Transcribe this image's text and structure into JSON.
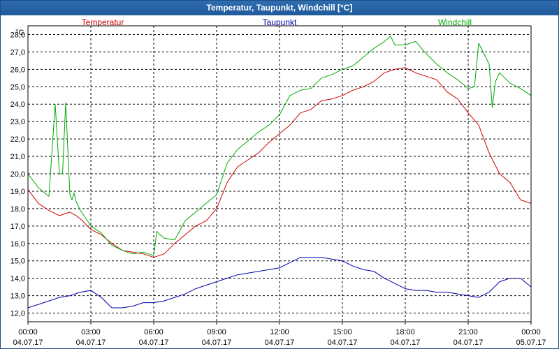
{
  "chart_data": {
    "type": "line",
    "title": "Temperatur, Taupunkt, Windchill [°C]",
    "ylabel": "°C",
    "ylim": [
      11.5,
      28.5
    ],
    "yticks": [
      12,
      13,
      14,
      15,
      16,
      17,
      18,
      19,
      20,
      21,
      22,
      23,
      24,
      25,
      26,
      27,
      28
    ],
    "ytick_labels": [
      "12,0",
      "13,0",
      "14,0",
      "15,0",
      "16,0",
      "17,0",
      "18,0",
      "19,0",
      "20,0",
      "21,0",
      "22,0",
      "23,0",
      "24,0",
      "25,0",
      "26,0",
      "27,0",
      "28,0"
    ],
    "xlim": [
      0,
      24
    ],
    "xticks": [
      {
        "x": 0,
        "time": "00:00",
        "date": "04.07.17"
      },
      {
        "x": 3,
        "time": "03:00",
        "date": "04.07.17"
      },
      {
        "x": 6,
        "time": "06:00",
        "date": "04.07.17"
      },
      {
        "x": 9,
        "time": "09:00",
        "date": "04.07.17"
      },
      {
        "x": 12,
        "time": "12:00",
        "date": "04.07.17"
      },
      {
        "x": 15,
        "time": "15:00",
        "date": "04.07.17"
      },
      {
        "x": 18,
        "time": "18:00",
        "date": "04.07.17"
      },
      {
        "x": 21,
        "time": "21:00",
        "date": "04.07.17"
      },
      {
        "x": 24,
        "time": "00:00",
        "date": "05.07.17"
      }
    ],
    "grid": true,
    "series": [
      {
        "name": "Temperatur",
        "color": "#cc0000",
        "x": [
          0,
          0.5,
          1,
          1.5,
          2,
          2.3,
          2.6,
          3,
          3.5,
          4,
          4.5,
          5,
          5.5,
          6,
          6.5,
          7,
          7.5,
          8,
          8.5,
          9,
          9.5,
          10,
          10.5,
          11,
          11.5,
          12,
          12.5,
          13,
          13.5,
          14,
          14.5,
          15,
          15.5,
          16,
          16.5,
          17,
          17.5,
          18,
          18.5,
          19,
          19.5,
          20,
          20.5,
          21,
          21.5,
          22,
          22.5,
          23,
          23.5,
          24
        ],
        "values": [
          19.1,
          18.3,
          17.9,
          17.6,
          17.8,
          17.6,
          17.3,
          16.8,
          16.5,
          16.0,
          15.6,
          15.5,
          15.4,
          15.2,
          15.4,
          16.0,
          16.5,
          17.0,
          17.3,
          18.0,
          19.5,
          20.4,
          20.8,
          21.2,
          21.8,
          22.3,
          22.8,
          23.5,
          23.7,
          24.2,
          24.3,
          24.5,
          24.8,
          25.0,
          25.3,
          25.8,
          26.0,
          26.1,
          25.8,
          25.6,
          25.4,
          24.7,
          24.3,
          23.5,
          22.8,
          21.2,
          20.0,
          19.5,
          18.5,
          18.3
        ]
      },
      {
        "name": "Taupunkt",
        "color": "#0000aa",
        "x": [
          0,
          0.5,
          1,
          1.5,
          2,
          2.5,
          3,
          3.5,
          4,
          4.5,
          5,
          5.5,
          6,
          6.5,
          7,
          7.5,
          8,
          8.5,
          9,
          9.5,
          10,
          10.5,
          11,
          11.5,
          12,
          12.5,
          13,
          13.5,
          14,
          14.5,
          15,
          15.5,
          16,
          16.5,
          17,
          17.5,
          18,
          18.5,
          19,
          19.5,
          20,
          20.5,
          21,
          21.5,
          22,
          22.5,
          23,
          23.5,
          24
        ],
        "values": [
          12.3,
          12.5,
          12.7,
          12.9,
          13.0,
          13.2,
          13.3,
          12.9,
          12.3,
          12.3,
          12.4,
          12.6,
          12.6,
          12.7,
          12.9,
          13.1,
          13.4,
          13.6,
          13.8,
          14.0,
          14.2,
          14.3,
          14.4,
          14.5,
          14.6,
          14.9,
          15.2,
          15.2,
          15.2,
          15.1,
          15.0,
          14.7,
          14.5,
          14.4,
          14.0,
          13.7,
          13.4,
          13.3,
          13.3,
          13.2,
          13.2,
          13.1,
          13.0,
          12.9,
          13.2,
          13.8,
          14.0,
          14.0,
          13.5
        ]
      },
      {
        "name": "Windchill",
        "color": "#00aa00",
        "x": [
          0,
          0.5,
          1,
          1.3,
          1.5,
          1.65,
          1.8,
          2,
          2.1,
          2.2,
          2.3,
          2.5,
          3,
          3.5,
          4,
          4.5,
          5,
          5.5,
          6,
          6.15,
          6.3,
          6.5,
          7,
          7.5,
          8,
          8.5,
          9,
          9.5,
          10,
          10.5,
          11,
          11.5,
          12,
          12.5,
          13,
          13.5,
          14,
          14.5,
          15,
          15.5,
          16,
          16.5,
          17,
          17.3,
          17.5,
          18,
          18.5,
          19,
          19.5,
          20,
          20.5,
          21,
          21.3,
          21.5,
          22,
          22.15,
          22.3,
          22.5,
          23,
          23.5,
          24
        ],
        "values": [
          20.0,
          19.2,
          18.7,
          24.0,
          20.0,
          20.0,
          24.1,
          18.8,
          18.5,
          18.9,
          18.4,
          17.9,
          17.0,
          16.6,
          15.9,
          15.6,
          15.4,
          15.5,
          15.3,
          16.7,
          16.5,
          16.3,
          16.2,
          17.3,
          17.8,
          18.3,
          18.8,
          20.6,
          21.4,
          21.9,
          22.4,
          22.8,
          23.4,
          24.5,
          24.8,
          24.9,
          25.5,
          25.7,
          26.0,
          26.2,
          26.7,
          27.2,
          27.6,
          27.9,
          27.4,
          27.4,
          27.6,
          26.9,
          26.3,
          25.8,
          25.4,
          24.9,
          25.0,
          27.5,
          26.3,
          23.8,
          25.3,
          25.8,
          25.2,
          24.9,
          24.5
        ]
      }
    ]
  }
}
